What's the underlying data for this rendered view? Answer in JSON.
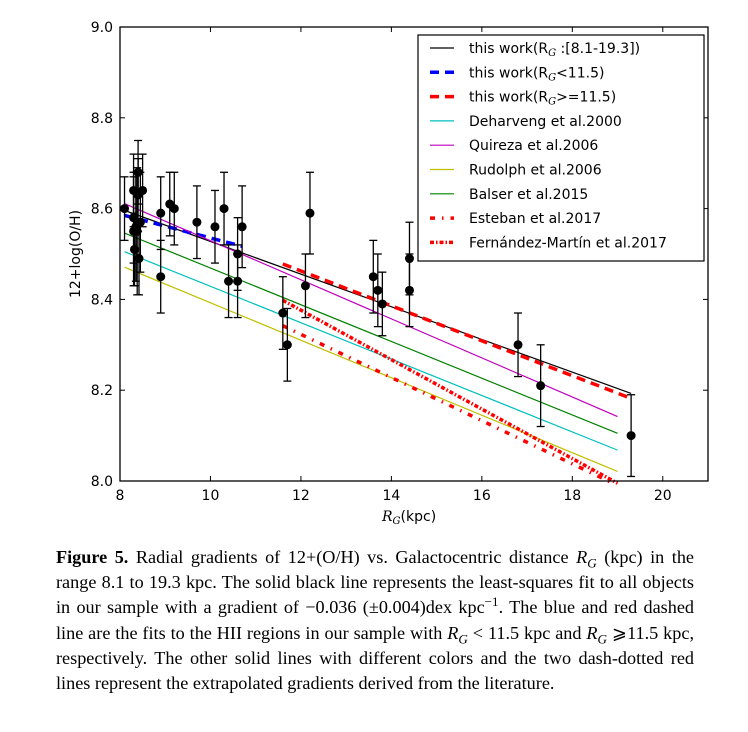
{
  "chart_data": {
    "type": "scatter",
    "title": "",
    "xlabel": "R_G(kpc)",
    "ylabel": "12+log(O/H)",
    "xlim": [
      8,
      21
    ],
    "ylim": [
      8.0,
      9.0
    ],
    "xticks": [
      8,
      10,
      12,
      14,
      16,
      18,
      20
    ],
    "yticks": [
      8.0,
      8.2,
      8.4,
      8.6,
      8.8,
      9.0
    ],
    "xtick_labels": [
      "8",
      "10",
      "12",
      "14",
      "16",
      "18",
      "20"
    ],
    "ytick_labels": [
      "8.0",
      "8.2",
      "8.4",
      "8.6",
      "8.8",
      "9.0"
    ],
    "grid": false,
    "legend_position": "top-right",
    "points": [
      {
        "x": 8.1,
        "y": 8.6,
        "err": 0.07
      },
      {
        "x": 8.3,
        "y": 8.64,
        "err": 0.08
      },
      {
        "x": 8.3,
        "y": 8.58,
        "err": 0.1
      },
      {
        "x": 8.3,
        "y": 8.55,
        "err": 0.12
      },
      {
        "x": 8.32,
        "y": 8.51,
        "err": 0.08
      },
      {
        "x": 8.35,
        "y": 8.56,
        "err": 0.12
      },
      {
        "x": 8.38,
        "y": 8.55,
        "err": 0.14
      },
      {
        "x": 8.4,
        "y": 8.63,
        "err": 0.08
      },
      {
        "x": 8.4,
        "y": 8.68,
        "err": 0.07
      },
      {
        "x": 8.42,
        "y": 8.49,
        "err": 0.08
      },
      {
        "x": 8.45,
        "y": 8.57,
        "err": 0.11
      },
      {
        "x": 8.5,
        "y": 8.64,
        "err": 0.08
      },
      {
        "x": 8.9,
        "y": 8.59,
        "err": 0.08
      },
      {
        "x": 8.9,
        "y": 8.45,
        "err": 0.08
      },
      {
        "x": 9.1,
        "y": 8.61,
        "err": 0.07
      },
      {
        "x": 9.2,
        "y": 8.6,
        "err": 0.08
      },
      {
        "x": 9.7,
        "y": 8.57,
        "err": 0.08
      },
      {
        "x": 10.1,
        "y": 8.56,
        "err": 0.08
      },
      {
        "x": 10.3,
        "y": 8.6,
        "err": 0.08
      },
      {
        "x": 10.4,
        "y": 8.44,
        "err": 0.08
      },
      {
        "x": 10.6,
        "y": 8.44,
        "err": 0.08
      },
      {
        "x": 10.6,
        "y": 8.5,
        "err": 0.08
      },
      {
        "x": 10.7,
        "y": 8.56,
        "err": 0.09
      },
      {
        "x": 11.6,
        "y": 8.37,
        "err": 0.08
      },
      {
        "x": 11.7,
        "y": 8.3,
        "err": 0.08
      },
      {
        "x": 12.1,
        "y": 8.43,
        "err": 0.07
      },
      {
        "x": 12.2,
        "y": 8.59,
        "err": 0.09
      },
      {
        "x": 13.6,
        "y": 8.45,
        "err": 0.08
      },
      {
        "x": 13.7,
        "y": 8.42,
        "err": 0.08
      },
      {
        "x": 13.8,
        "y": 8.39,
        "err": 0.07
      },
      {
        "x": 14.4,
        "y": 8.49,
        "err": 0.08
      },
      {
        "x": 14.4,
        "y": 8.42,
        "err": 0.08
      },
      {
        "x": 16.8,
        "y": 8.3,
        "err": 0.07
      },
      {
        "x": 17.3,
        "y": 8.21,
        "err": 0.09
      },
      {
        "x": 19.3,
        "y": 8.1,
        "err": 0.09
      }
    ],
    "series": [
      {
        "name": "this work(R_G :[8.1-19.3])",
        "color": "#000000",
        "style": "solid",
        "x": [
          8.1,
          19.3
        ],
        "y": [
          8.596,
          8.193
        ]
      },
      {
        "name": "this work(R_G<11.5)",
        "color": "#0000ff",
        "style": "dashed",
        "x": [
          8.1,
          10.7
        ],
        "y": [
          8.585,
          8.517
        ]
      },
      {
        "name": "this work(R_G>=11.5)",
        "color": "#ff0000",
        "style": "dashed",
        "x": [
          11.6,
          19.3
        ],
        "y": [
          8.478,
          8.182
        ]
      },
      {
        "name": "Deharveng et al.2000",
        "color": "#00bfbf",
        "style": "solid",
        "x": [
          8.1,
          19.0
        ],
        "y": [
          8.505,
          8.068
        ]
      },
      {
        "name": "Quireza et al.2006",
        "color": "#bf00bf",
        "style": "solid",
        "x": [
          8.1,
          19.0
        ],
        "y": [
          8.611,
          8.142
        ]
      },
      {
        "name": "Rudolph et al.2006",
        "color": "#bfbf00",
        "style": "solid",
        "x": [
          8.1,
          19.0
        ],
        "y": [
          8.471,
          8.021
        ]
      },
      {
        "name": "Balser et al.2015",
        "color": "#008000",
        "style": "solid",
        "x": [
          8.1,
          19.0
        ],
        "y": [
          8.546,
          8.105
        ]
      },
      {
        "name": "Esteban et al.2017",
        "color": "#ff0000",
        "style": "dashdot-sparse",
        "x": [
          11.6,
          18.9
        ],
        "y": [
          8.342,
          7.995
        ]
      },
      {
        "name": "Fernández-Martín et al.2017",
        "color": "#ff0000",
        "style": "dashdot-dense",
        "x": [
          11.6,
          19.0
        ],
        "y": [
          8.398,
          7.995
        ]
      }
    ]
  },
  "legend": [
    {
      "prefix": "this work(R",
      "sub": "G",
      "suffix": " :[8.1-19.3])"
    },
    {
      "prefix": "this work(R",
      "sub": "G",
      "suffix": "<11.5)"
    },
    {
      "prefix": "this work(R",
      "sub": "G",
      "suffix": ">=11.5)"
    },
    {
      "prefix": "Deharveng et al.2000",
      "sub": "",
      "suffix": ""
    },
    {
      "prefix": "Quireza et al.2006",
      "sub": "",
      "suffix": ""
    },
    {
      "prefix": "Rudolph et al.2006",
      "sub": "",
      "suffix": ""
    },
    {
      "prefix": "Balser et al.2015",
      "sub": "",
      "suffix": ""
    },
    {
      "prefix": "Esteban et al.2017",
      "sub": "",
      "suffix": ""
    },
    {
      "prefix": "Fernández-Martín et al.2017",
      "sub": "",
      "suffix": ""
    }
  ],
  "axis": {
    "xlabel_main": "R",
    "xlabel_sub": "G",
    "xlabel_rest": "(kpc)",
    "ylabel": "12+log(O/H)"
  },
  "caption": {
    "figure_label": "Figure 5.",
    "part1": " Radial gradients of 12+(O/H) vs. Galactocentric distance ",
    "rg1": "R",
    "rg1_sub": "G",
    "part2": " (kpc) in the range 8.1 to 19.3 kpc. The solid black line represents the least-squares fit to all objects in our sample with a gradient of −0.036  (±0.004)dex kpc",
    "sup": "−1",
    "part3": ". The blue and red dashed line are the fits to the HII regions in our sample with ",
    "rg2": "R",
    "rg2_sub": "G",
    "part4": " < 11.5 kpc and ",
    "rg3": "R",
    "rg3_sub": "G",
    "part5": " ⩾11.5 kpc, respectively. The other solid lines with different colors and the two dash-dotted red lines represent the extrapolated gradients derived from the literature."
  }
}
